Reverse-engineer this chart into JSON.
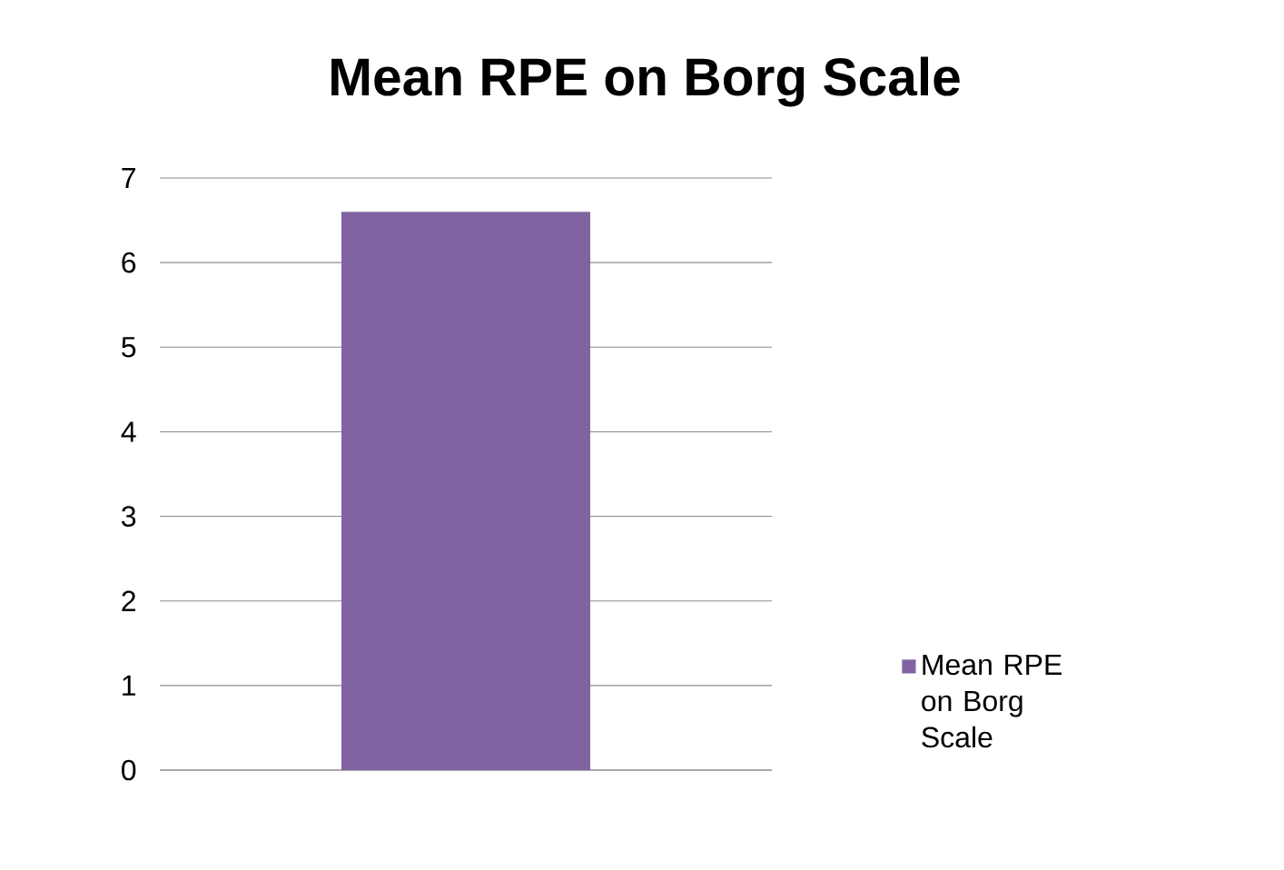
{
  "chart_data": {
    "type": "bar",
    "title": "Mean RPE on Borg Scale",
    "categories": [
      null
    ],
    "series": [
      {
        "name": "Mean RPE on Borg Scale",
        "color": "#8064a2",
        "values": [
          6.6
        ]
      }
    ],
    "ylim": [
      0,
      7
    ],
    "yticks": [
      0,
      1,
      2,
      3,
      4,
      5,
      6,
      7
    ],
    "grid": "y",
    "legend": "right"
  }
}
